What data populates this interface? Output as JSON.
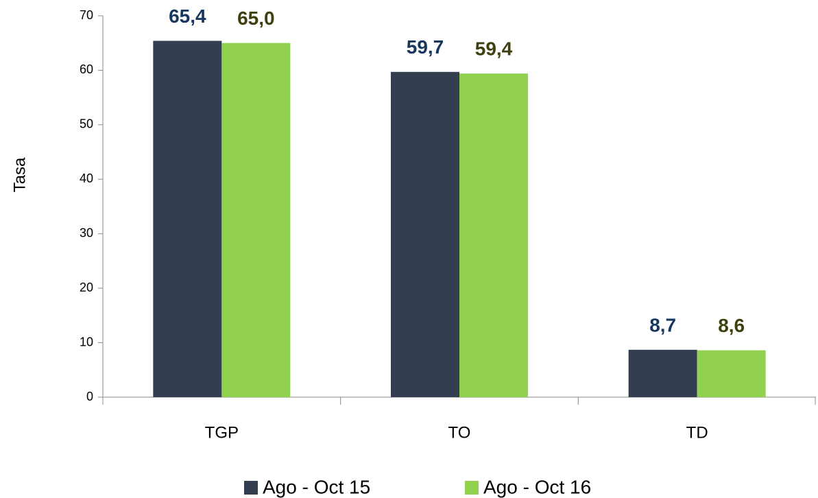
{
  "chart_data": {
    "type": "bar",
    "y_label": "Tasa",
    "categories": [
      "TGP",
      "TO",
      "TD"
    ],
    "series": [
      {
        "name": "Ago - Oct 15",
        "color": "#333f50",
        "label_color": "#17375e",
        "values": [
          65.4,
          59.7,
          8.7
        ],
        "value_labels": [
          "65,4",
          "59,7",
          "8,7"
        ]
      },
      {
        "name": "Ago - Oct 16",
        "color": "#92d050",
        "label_color": "#3f3f0f",
        "values": [
          65.0,
          59.4,
          8.6
        ],
        "value_labels": [
          "65,0",
          "59,4",
          "8,6"
        ]
      }
    ],
    "ylim": [
      0,
      70
    ],
    "yticks": [
      0,
      10,
      20,
      30,
      40,
      50,
      60,
      70
    ],
    "legend": "bottom"
  }
}
